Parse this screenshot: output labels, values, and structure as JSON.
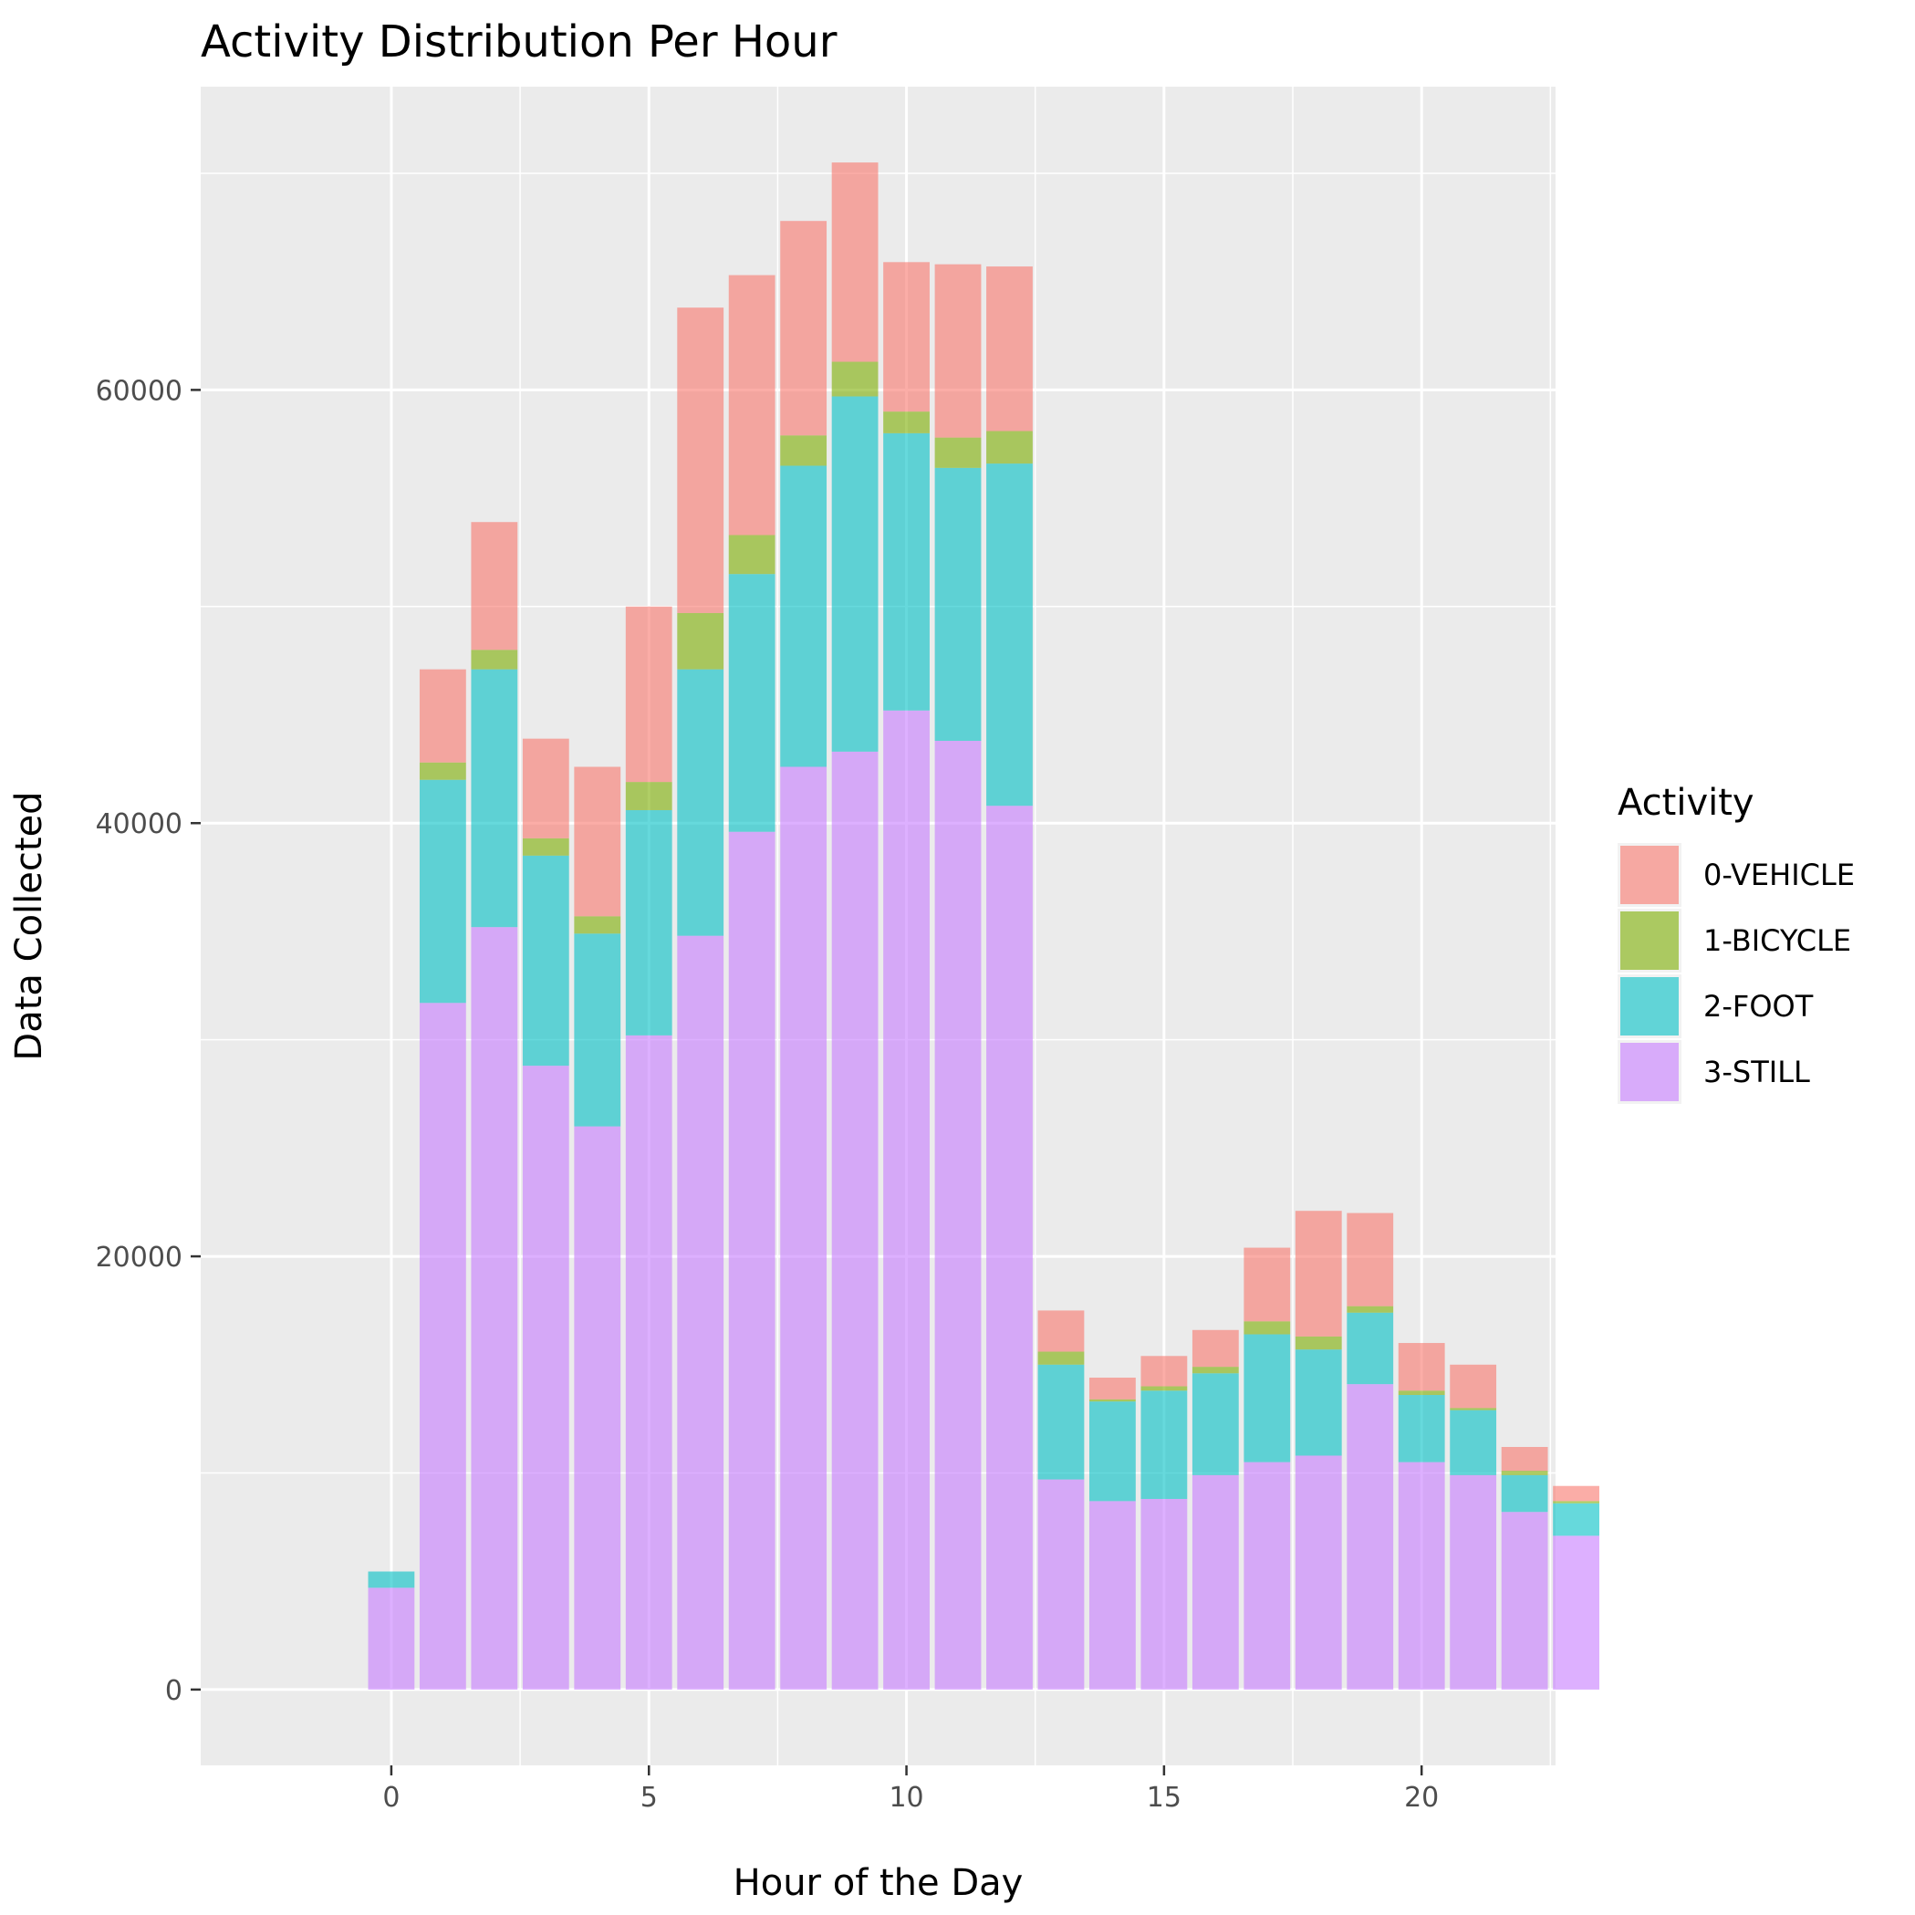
{
  "chart_data": {
    "type": "bar",
    "stacked": true,
    "title": "Activity Distribution Per Hour",
    "xlabel": "Hour of the Day",
    "ylabel": "Data Collected",
    "x": [
      0,
      1,
      2,
      3,
      4,
      5,
      6,
      7,
      8,
      9,
      10,
      11,
      12,
      13,
      14,
      15,
      16,
      17,
      18,
      19,
      20,
      21,
      22,
      23
    ],
    "xticks": [
      0,
      5,
      10,
      15,
      20
    ],
    "yticks": [
      0,
      20000,
      40000,
      60000
    ],
    "xlim": [
      -3.7,
      22.6
    ],
    "ylim": [
      -3500,
      74000
    ],
    "grid": true,
    "legend": {
      "title": "Activity",
      "position": "right"
    },
    "series": [
      {
        "name": "3-STILL",
        "color": "#C77CFF",
        "values": [
          4700,
          31700,
          35200,
          28800,
          26000,
          30200,
          34800,
          39600,
          42600,
          43300,
          45200,
          43800,
          40800,
          9700,
          8700,
          8800,
          9900,
          10500,
          10800,
          14100,
          10500,
          9900,
          8200,
          7100
        ]
      },
      {
        "name": "2-FOOT",
        "color": "#00BFC4",
        "values": [
          750,
          10300,
          11900,
          9700,
          8900,
          10400,
          12300,
          11900,
          13900,
          16400,
          12800,
          12600,
          15800,
          5300,
          4600,
          5000,
          4700,
          5900,
          4900,
          3300,
          3100,
          3000,
          1700,
          1500
        ]
      },
      {
        "name": "1-BICYCLE",
        "color": "#7CAE00",
        "values": [
          0,
          800,
          900,
          800,
          800,
          1300,
          2600,
          1800,
          1400,
          1600,
          1000,
          1400,
          1500,
          600,
          100,
          200,
          300,
          600,
          600,
          300,
          200,
          100,
          200,
          100
        ]
      },
      {
        "name": "0-VEHICLE",
        "color": "#F8766D",
        "values": [
          0,
          4300,
          5900,
          4600,
          6900,
          8100,
          14100,
          12000,
          9900,
          9200,
          6900,
          8000,
          7600,
          1900,
          1000,
          1400,
          1700,
          3400,
          5800,
          4300,
          2200,
          2000,
          1100,
          700
        ]
      }
    ]
  }
}
